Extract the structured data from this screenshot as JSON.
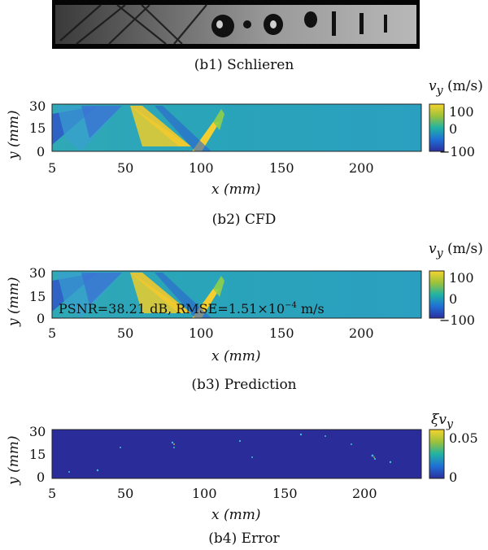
{
  "panels": {
    "b1": {
      "caption": "(b1) Schlieren"
    },
    "b2": {
      "caption": "(b2) CFD",
      "xlabel": "x (mm)",
      "ylabel": "y (mm)",
      "xticks": [
        "5",
        "50",
        "100",
        "150",
        "200"
      ],
      "yticks": [
        "30",
        "15",
        "0"
      ],
      "colorbar": {
        "title_sym": "v",
        "title_sub": "y",
        "title_unit": " (m/s)",
        "ticks": [
          "100",
          "0",
          "−100"
        ]
      }
    },
    "b3": {
      "caption": "(b3) Prediction",
      "xlabel": "x (mm)",
      "ylabel": "y (mm)",
      "xticks": [
        "5",
        "50",
        "100",
        "150",
        "200"
      ],
      "yticks": [
        "30",
        "15",
        "0"
      ],
      "annotation": "PSNR=38.21 dB, RMSE=1.51×10",
      "annotation_exp": "−4",
      "annotation_unit": " m/s",
      "colorbar": {
        "title_sym": "v",
        "title_sub": "y",
        "title_unit": " (m/s)",
        "ticks": [
          "100",
          "0",
          "−100"
        ]
      }
    },
    "b4": {
      "caption": "(b4) Error",
      "xlabel": "x (mm)",
      "ylabel": "y (mm)",
      "xticks": [
        "5",
        "50",
        "100",
        "150",
        "200"
      ],
      "yticks": [
        "30",
        "15",
        "0"
      ],
      "colorbar": {
        "title_sym": "ξv",
        "title_sub": "y",
        "title_unit": "",
        "ticks": [
          "0.05",
          "0"
        ]
      }
    }
  },
  "colors": {
    "parula_low": "#2b2f9e",
    "parula_mid": "#21b3a3",
    "parula_high": "#f6d42e"
  }
}
